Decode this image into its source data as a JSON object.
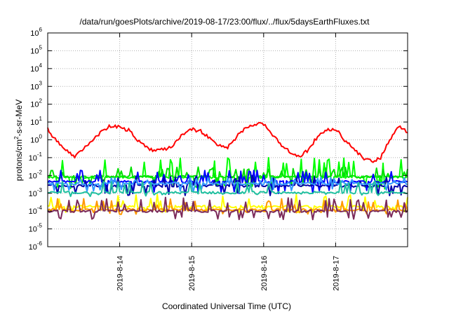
{
  "chart_data": {
    "type": "line",
    "title": "/data/run/goesPlots/archive/2019-08-17/23:00/flux/../flux/5daysEarthFluxes.txt",
    "xlabel": "Coordinated Universal Time (UTC)",
    "ylabel": "protons/cm2-s-sr-MeV",
    "ylabel_parts": {
      "pre": "protons/cm",
      "sup": "2",
      "post": "-s-sr-MeV"
    },
    "y_scale": "log",
    "ylim": [
      1e-06,
      1000000.0
    ],
    "xlim": [
      "2019-08-13T00:00",
      "2019-08-18T00:00"
    ],
    "y_ticks": [
      {
        "base": "10",
        "exp": "-6",
        "value": 1e-06
      },
      {
        "base": "10",
        "exp": "-5",
        "value": 1e-05
      },
      {
        "base": "10",
        "exp": "-4",
        "value": 0.0001
      },
      {
        "base": "10",
        "exp": "-3",
        "value": 0.001
      },
      {
        "base": "10",
        "exp": "-2",
        "value": 0.01
      },
      {
        "base": "10",
        "exp": "-1",
        "value": 0.1
      },
      {
        "base": "10",
        "exp": "0",
        "value": 1
      },
      {
        "base": "10",
        "exp": "1",
        "value": 10
      },
      {
        "base": "10",
        "exp": "2",
        "value": 100
      },
      {
        "base": "10",
        "exp": "3",
        "value": 1000
      },
      {
        "base": "10",
        "exp": "4",
        "value": 10000
      },
      {
        "base": "10",
        "exp": "5",
        "value": 100000
      },
      {
        "base": "10",
        "exp": "6",
        "value": 1000000
      }
    ],
    "x_ticks": [
      {
        "label": "2019-8-14",
        "value": "2019-08-14T00:00"
      },
      {
        "label": "2019-8-15",
        "value": "2019-08-15T00:00"
      },
      {
        "label": "2019-8-16",
        "value": "2019-08-16T00:00"
      },
      {
        "label": "2019-8-17",
        "value": "2019-08-17T00:00"
      }
    ],
    "grid": true,
    "legend": "none",
    "series": [
      {
        "color": "#ff0000",
        "kind": "smooth",
        "x": [
          "2019-08-13T00:00",
          "2019-08-13T03:00",
          "2019-08-13T06:00",
          "2019-08-13T09:00",
          "2019-08-13T12:00",
          "2019-08-13T15:00",
          "2019-08-13T18:00",
          "2019-08-13T21:00",
          "2019-08-14T00:00",
          "2019-08-14T03:00",
          "2019-08-14T06:00",
          "2019-08-14T09:00",
          "2019-08-14T12:00",
          "2019-08-14T15:00",
          "2019-08-14T18:00",
          "2019-08-14T21:00",
          "2019-08-15T00:00",
          "2019-08-15T03:00",
          "2019-08-15T06:00",
          "2019-08-15T09:00",
          "2019-08-15T12:00",
          "2019-08-15T15:00",
          "2019-08-15T18:00",
          "2019-08-15T21:00",
          "2019-08-16T00:00",
          "2019-08-16T03:00",
          "2019-08-16T06:00",
          "2019-08-16T09:00",
          "2019-08-16T12:00",
          "2019-08-16T15:00",
          "2019-08-16T18:00",
          "2019-08-16T21:00",
          "2019-08-17T00:00",
          "2019-08-17T03:00",
          "2019-08-17T06:00",
          "2019-08-17T09:00",
          "2019-08-17T12:00",
          "2019-08-17T15:00",
          "2019-08-17T18:00",
          "2019-08-17T21:00",
          "2019-08-18T00:00"
        ],
        "values": [
          4,
          0.8,
          0.25,
          0.12,
          0.3,
          1.0,
          3.0,
          6.0,
          5.0,
          3.5,
          1.0,
          0.35,
          0.25,
          0.3,
          0.5,
          2.0,
          4.0,
          3.0,
          1.2,
          0.5,
          0.4,
          1.5,
          5.0,
          8.0,
          7.0,
          2.0,
          0.5,
          0.2,
          0.1,
          0.3,
          1.5,
          4.0,
          4.0,
          1.0,
          0.3,
          0.1,
          0.06,
          0.1,
          1.0,
          6.0,
          2.5
        ]
      },
      {
        "color": "#00ff00",
        "kind": "spiky",
        "base": 0.008,
        "spike_to": 0.1,
        "dip_to": 0.0022
      },
      {
        "color": "#00e000",
        "kind": "spiky",
        "base": 0.0085,
        "spike_to": 0.03,
        "dip_to": 0.003
      },
      {
        "color": "#0000ff",
        "kind": "spiky",
        "base": 0.0045,
        "spike_to": 0.02,
        "dip_to": 0.0012
      },
      {
        "color": "#0000aa",
        "kind": "spiky",
        "base": 0.0026,
        "spike_to": 0.01,
        "dip_to": 0.0009
      },
      {
        "color": "#3399ff",
        "kind": "spiky",
        "base": 0.0035,
        "spike_to": 0.008,
        "dip_to": 0.0015
      },
      {
        "color": "#20c0a0",
        "kind": "spiky",
        "base": 0.0011,
        "spike_to": 0.005,
        "dip_to": 0.0008
      },
      {
        "color": "#ffff00",
        "kind": "spiky",
        "base": 0.00018,
        "spike_to": 0.0009,
        "dip_to": 0.0001
      },
      {
        "color": "#ff9900",
        "kind": "spiky",
        "base": 0.00012,
        "spike_to": 0.0005,
        "dip_to": 8e-05
      },
      {
        "color": "#7b2a5a",
        "kind": "spiky",
        "base": 0.0001,
        "spike_to": 0.0006,
        "dip_to": 4e-05
      }
    ]
  }
}
